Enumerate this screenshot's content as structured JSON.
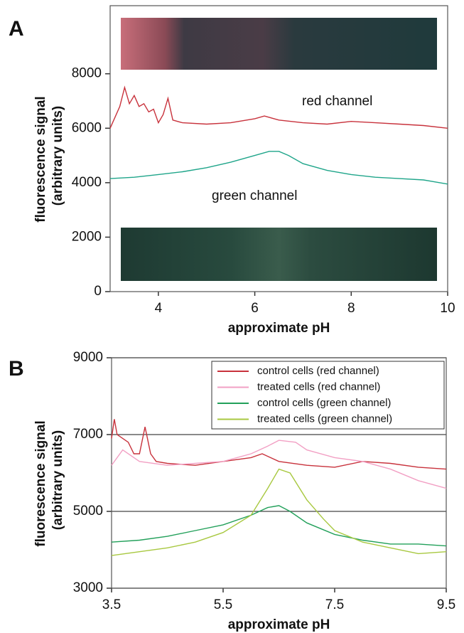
{
  "chart_data": [
    {
      "type": "line",
      "panel": "A",
      "xlabel": "approximate pH",
      "ylabel": [
        "fluorescence signal",
        "(arbitrary units)"
      ],
      "xlim": [
        3,
        10
      ],
      "xticks": [
        4,
        6,
        8,
        10
      ],
      "ylim": [
        0,
        10500
      ],
      "yticks": [
        0,
        2000,
        4000,
        6000,
        8000
      ],
      "grid": false,
      "annotations": [
        {
          "text": "red channel",
          "color": "#c8323c"
        },
        {
          "text": "green channel",
          "color": "#1fa58a"
        }
      ],
      "series": [
        {
          "name": "red channel",
          "color": "#c8323c",
          "x": [
            3.0,
            3.2,
            3.3,
            3.4,
            3.5,
            3.6,
            3.7,
            3.8,
            3.9,
            4.0,
            4.1,
            4.2,
            4.3,
            4.5,
            5,
            5.5,
            6,
            6.2,
            6.5,
            7,
            7.5,
            8,
            8.5,
            9,
            9.5,
            10
          ],
          "values": [
            6000,
            6800,
            7500,
            6900,
            7200,
            6800,
            6900,
            6600,
            6700,
            6200,
            6500,
            7100,
            6300,
            6200,
            6150,
            6200,
            6350,
            6450,
            6300,
            6200,
            6150,
            6250,
            6200,
            6150,
            6100,
            6000
          ]
        },
        {
          "name": "green channel",
          "color": "#1fa58a",
          "x": [
            3,
            3.5,
            4,
            4.5,
            5,
            5.5,
            6,
            6.3,
            6.5,
            6.7,
            7,
            7.5,
            8,
            8.5,
            9,
            9.5,
            10
          ],
          "values": [
            4150,
            4200,
            4300,
            4400,
            4550,
            4750,
            5000,
            5150,
            5150,
            5000,
            4700,
            4450,
            4300,
            4200,
            4150,
            4100,
            3950
          ]
        }
      ]
    },
    {
      "type": "line",
      "panel": "B",
      "xlabel": "approximate pH",
      "ylabel": [
        "fluorescence signal",
        "(arbitrary units)"
      ],
      "xlim": [
        3.5,
        9.5
      ],
      "xticks": [
        3.5,
        5.5,
        7.5,
        9.5
      ],
      "ylim": [
        3000,
        9000
      ],
      "yticks": [
        3000,
        5000,
        7000,
        9000
      ],
      "grid": true,
      "legend": "upper right",
      "series": [
        {
          "name": "control cells (red channel)",
          "color": "#c8323c",
          "x": [
            3.5,
            3.55,
            3.6,
            3.7,
            3.8,
            3.9,
            4.0,
            4.1,
            4.2,
            4.3,
            4.5,
            5,
            5.5,
            6,
            6.2,
            6.5,
            7,
            7.5,
            8,
            8.5,
            9,
            9.5
          ],
          "values": [
            6900,
            7400,
            7000,
            6900,
            6800,
            6500,
            6500,
            7200,
            6500,
            6300,
            6250,
            6200,
            6300,
            6400,
            6500,
            6300,
            6200,
            6150,
            6300,
            6250,
            6150,
            6100
          ]
        },
        {
          "name": "treated cells (red channel)",
          "color": "#f2a0c4",
          "x": [
            3.5,
            3.7,
            4,
            4.5,
            5,
            5.5,
            6,
            6.3,
            6.5,
            6.8,
            7,
            7.5,
            8,
            8.5,
            9,
            9.5
          ],
          "values": [
            6200,
            6600,
            6300,
            6200,
            6250,
            6300,
            6500,
            6700,
            6850,
            6800,
            6600,
            6400,
            6300,
            6100,
            5800,
            5600
          ]
        },
        {
          "name": "control cells (green channel)",
          "color": "#22a05a",
          "x": [
            3.5,
            4,
            4.5,
            5,
            5.5,
            6,
            6.3,
            6.5,
            6.7,
            7,
            7.5,
            8,
            8.5,
            9,
            9.5
          ],
          "values": [
            4200,
            4250,
            4350,
            4500,
            4650,
            4900,
            5100,
            5150,
            5000,
            4700,
            4400,
            4250,
            4150,
            4150,
            4100
          ]
        },
        {
          "name": "treated cells (green channel)",
          "color": "#a8c840",
          "x": [
            3.5,
            4,
            4.5,
            5,
            5.5,
            6,
            6.3,
            6.5,
            6.7,
            7,
            7.3,
            7.5,
            8,
            8.5,
            9,
            9.5
          ],
          "values": [
            3850,
            3950,
            4050,
            4200,
            4450,
            4900,
            5600,
            6100,
            6000,
            5300,
            4800,
            4500,
            4200,
            4050,
            3900,
            3950
          ]
        }
      ]
    }
  ]
}
